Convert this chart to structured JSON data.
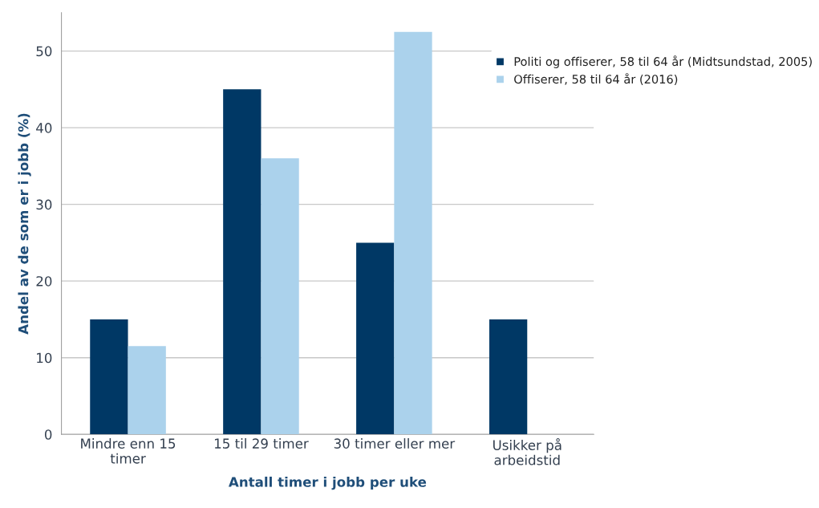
{
  "chart_data": {
    "type": "bar",
    "xlabel": "Antall timer i jobb per uke",
    "ylabel": "Andel av de som er i jobb (%)",
    "categories": [
      "Mindre enn 15\ntimer",
      "15 til 29 timer",
      "30 timer eller mer",
      "Usikker på\narbeidstid"
    ],
    "series": [
      {
        "name": "Politi og offiserer, 58 til 64 år (Midtsundstad, 2005)",
        "color": "#003865",
        "values": [
          15,
          45,
          25,
          15
        ]
      },
      {
        "name": "Offiserer, 58 til 64 år (2016)",
        "color": "#abd2ec",
        "values": [
          11.5,
          36,
          52.5,
          null
        ]
      }
    ],
    "ylim": [
      0,
      55
    ],
    "yticks": [
      0,
      10,
      20,
      30,
      40,
      50
    ],
    "grid": "y",
    "legend": "top right"
  }
}
